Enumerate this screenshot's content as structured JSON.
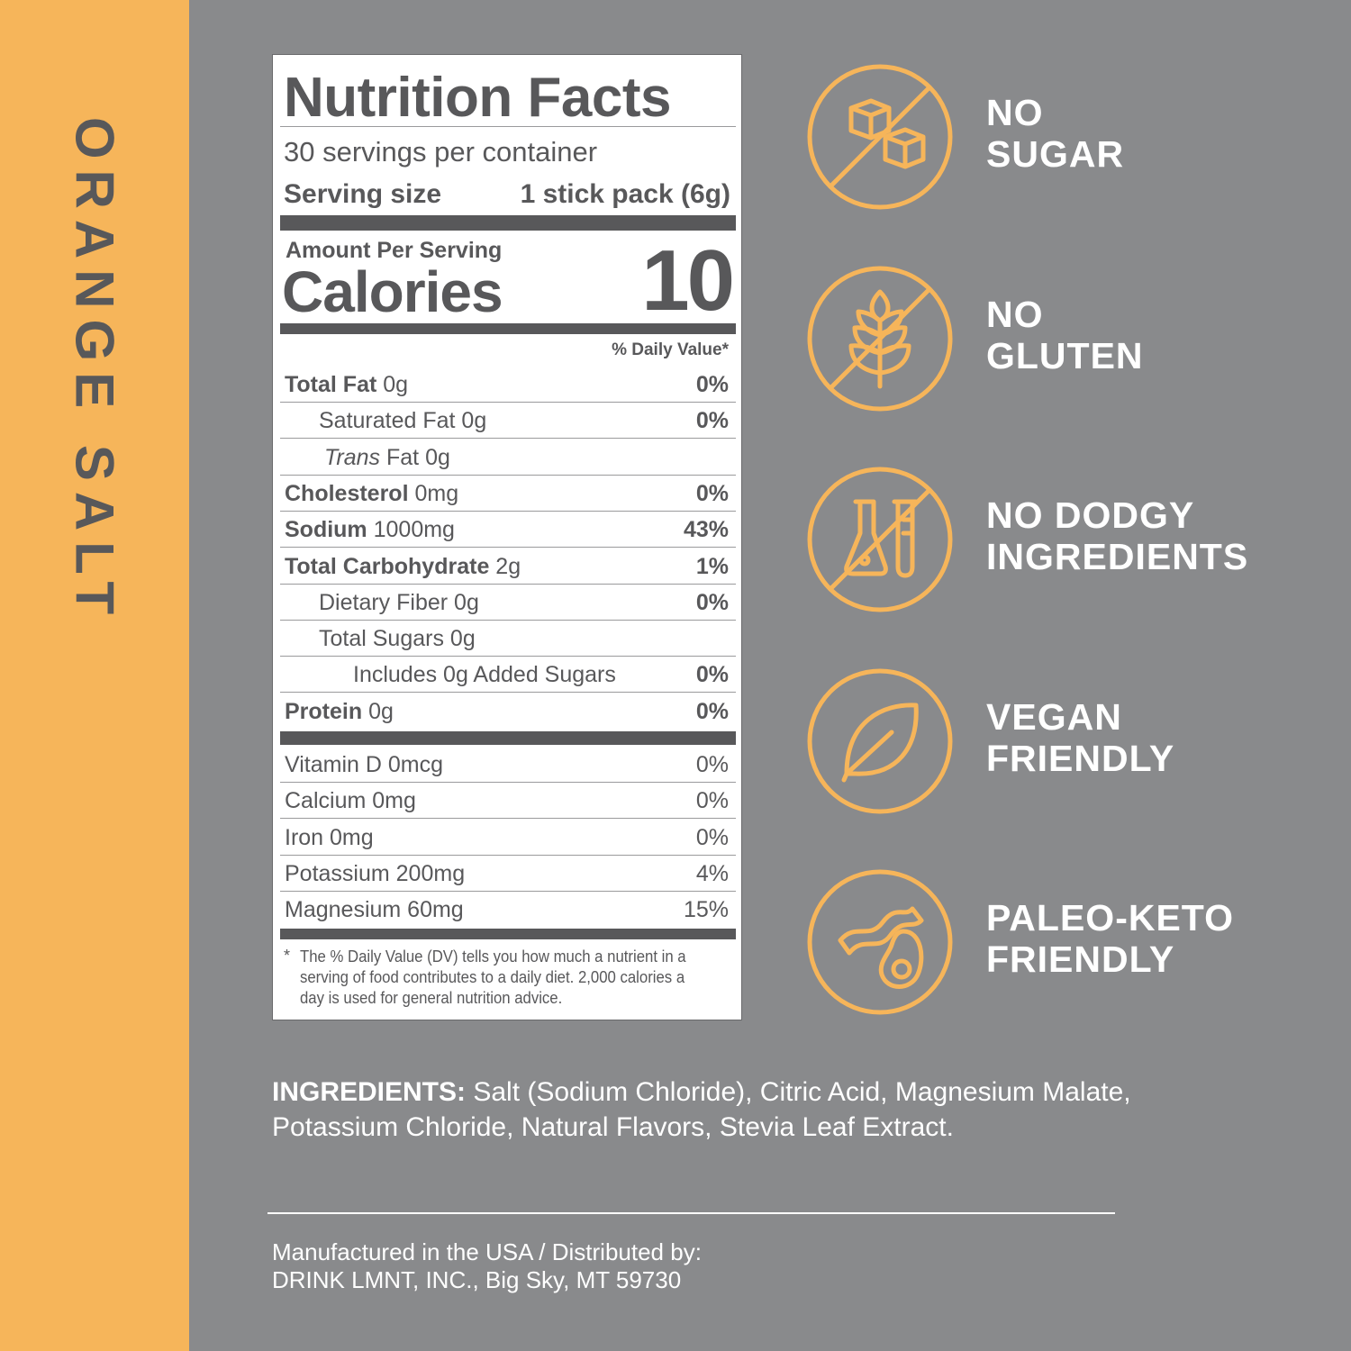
{
  "product_name": "ORANGE SALT",
  "colors": {
    "accent": "#f6b55a",
    "background": "#898a8c",
    "text": "#58585a"
  },
  "nutrition": {
    "title": "Nutrition Facts",
    "servings": "30 servings per container",
    "serving_size_label": "Serving size",
    "serving_size_value": "1 stick pack (6g)",
    "amount_per_serving": "Amount Per Serving",
    "calories_label": "Calories",
    "calories_value": "10",
    "dv_header": "% Daily Value*",
    "rows": [
      {
        "bold": "Total Fat",
        "text": " 0g",
        "dv": "0%"
      },
      {
        "bold": "",
        "text": "Saturated Fat 0g",
        "dv": "0%"
      },
      {
        "italic": "Trans",
        "text": " Fat 0g",
        "dv": ""
      },
      {
        "bold": "Cholesterol",
        "text": " 0mg",
        "dv": "0%"
      },
      {
        "bold": "Sodium",
        "text": " 1000mg",
        "dv": "43%"
      },
      {
        "bold": "Total Carbohydrate",
        "text": " 2g",
        "dv": "1%"
      },
      {
        "bold": "",
        "text": "Dietary Fiber 0g",
        "dv": "0%"
      },
      {
        "bold": "",
        "text": "Total Sugars 0g",
        "dv": ""
      },
      {
        "bold": "",
        "text": "Includes 0g Added Sugars",
        "dv": "0%"
      },
      {
        "bold": "Protein",
        "text": " 0g",
        "dv": "0%"
      }
    ],
    "vitamins": [
      {
        "text": "Vitamin D 0mcg",
        "dv": "0%"
      },
      {
        "text": "Calcium 0mg",
        "dv": "0%"
      },
      {
        "text": "Iron 0mg",
        "dv": "0%"
      },
      {
        "text": "Potassium 200mg",
        "dv": "4%"
      },
      {
        "text": "Magnesium 60mg",
        "dv": "15%"
      }
    ],
    "footnote_mark": "*",
    "footnote": "The % Daily Value (DV) tells you how much a nutrient in a serving of food contributes to a daily diet. 2,000 calories a day is used for general nutrition advice."
  },
  "claims": [
    {
      "icon": "no-sugar-cubes-icon",
      "line1": "NO",
      "line2": "SUGAR"
    },
    {
      "icon": "no-wheat-icon",
      "line1": "NO",
      "line2": "GLUTEN"
    },
    {
      "icon": "no-lab-flask-icon",
      "line1": "NO DODGY",
      "line2": "INGREDIENTS"
    },
    {
      "icon": "leaf-icon",
      "line1": "VEGAN",
      "line2": "FRIENDLY"
    },
    {
      "icon": "bacon-avocado-icon",
      "line1": "PALEO-KETO",
      "line2": "FRIENDLY"
    }
  ],
  "ingredients": {
    "label": "INGREDIENTS:",
    "text": " Salt (Sodium Chloride), Citric Acid, Magnesium Malate, Potassium Chloride, Natural Flavors, Stevia Leaf Extract."
  },
  "manufacturer": {
    "line1": "Manufactured in the USA / Distributed by:",
    "line2": "DRINK LMNT, INC., Big Sky, MT 59730"
  }
}
